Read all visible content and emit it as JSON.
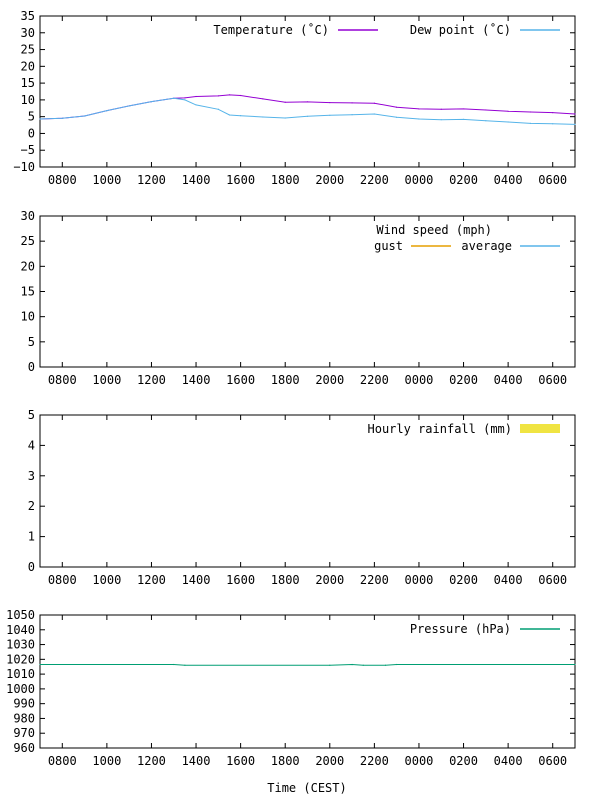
{
  "xlabel": "Time (CEST)",
  "x_ticks": [
    "0800",
    "1000",
    "1200",
    "1400",
    "1600",
    "1800",
    "2000",
    "2200",
    "0000",
    "0200",
    "0400",
    "0600"
  ],
  "x_range_hours": [
    7.0,
    31.0
  ],
  "chart_data": [
    {
      "type": "line",
      "title": "",
      "xlabel": "",
      "ylabel": "",
      "ylim": [
        -10,
        35
      ],
      "y_ticks": [
        "35",
        "30",
        "25",
        "20",
        "15",
        "10",
        "5",
        "0",
        "−5",
        "−10"
      ],
      "legend_placement": "top-right",
      "grid": false,
      "series": [
        {
          "name": "Temperature (˚C)",
          "color": "#9400d3",
          "x": [
            7.0,
            8.0,
            9.0,
            10.0,
            11.0,
            12.0,
            13.0,
            13.5,
            14.0,
            15.0,
            15.5,
            16.0,
            17.0,
            18.0,
            19.0,
            20.0,
            21.0,
            22.0,
            23.0,
            24.0,
            25.0,
            26.0,
            27.0,
            28.0,
            29.0,
            30.0,
            31.0
          ],
          "y": [
            4.3,
            4.5,
            5.2,
            6.8,
            8.2,
            9.5,
            10.5,
            10.6,
            11.0,
            11.2,
            11.5,
            11.3,
            10.3,
            9.3,
            9.4,
            9.2,
            9.1,
            9.0,
            7.8,
            7.3,
            7.2,
            7.3,
            7.0,
            6.6,
            6.4,
            6.2,
            5.8
          ]
        },
        {
          "name": "Dew point (˚C)",
          "color": "#56b4e9",
          "x": [
            7.0,
            8.0,
            9.0,
            10.0,
            11.0,
            12.0,
            13.0,
            13.5,
            14.0,
            15.0,
            15.5,
            16.0,
            17.0,
            18.0,
            19.0,
            20.0,
            21.0,
            22.0,
            23.0,
            24.0,
            25.0,
            26.0,
            27.0,
            28.0,
            29.0,
            30.0,
            31.0
          ],
          "y": [
            4.3,
            4.5,
            5.2,
            6.8,
            8.2,
            9.5,
            10.5,
            10.0,
            8.5,
            7.2,
            5.5,
            5.3,
            4.9,
            4.6,
            5.1,
            5.4,
            5.6,
            5.8,
            4.8,
            4.3,
            4.1,
            4.2,
            3.8,
            3.4,
            3.0,
            2.9,
            2.7
          ]
        }
      ]
    },
    {
      "type": "line",
      "title": "Wind speed (mph)",
      "xlabel": "",
      "ylabel": "",
      "ylim": [
        0,
        30
      ],
      "y_ticks": [
        "30",
        "25",
        "20",
        "15",
        "10",
        "5",
        "0"
      ],
      "legend_placement": "top-right",
      "grid": false,
      "series": [
        {
          "name": "gust",
          "color": "#e69f00",
          "x": [],
          "y": []
        },
        {
          "name": "average",
          "color": "#56b4e9",
          "x": [],
          "y": []
        }
      ]
    },
    {
      "type": "bar",
      "title": "",
      "xlabel": "",
      "ylabel": "",
      "ylim": [
        0,
        5
      ],
      "y_ticks": [
        "5",
        "4",
        "3",
        "2",
        "1",
        "0"
      ],
      "legend_placement": "top-right",
      "grid": false,
      "series": [
        {
          "name": "Hourly rainfall (mm)",
          "color": "#f0e442",
          "x": [],
          "y": []
        }
      ]
    },
    {
      "type": "line",
      "title": "",
      "xlabel": "",
      "ylabel": "",
      "ylim": [
        960,
        1050
      ],
      "y_ticks": [
        "1050",
        "1040",
        "1030",
        "1020",
        "1010",
        "1000",
        "990",
        "980",
        "970",
        "960"
      ],
      "legend_placement": "top-right",
      "grid": false,
      "series": [
        {
          "name": "Pressure (hPa)",
          "color": "#009e73",
          "x": [
            7.0,
            13.0,
            13.5,
            20.0,
            21.0,
            21.5,
            22.5,
            23.0,
            31.0
          ],
          "y": [
            1016.5,
            1016.5,
            1016.0,
            1016.0,
            1016.5,
            1016.0,
            1016.0,
            1016.5,
            1016.5
          ]
        }
      ]
    }
  ]
}
